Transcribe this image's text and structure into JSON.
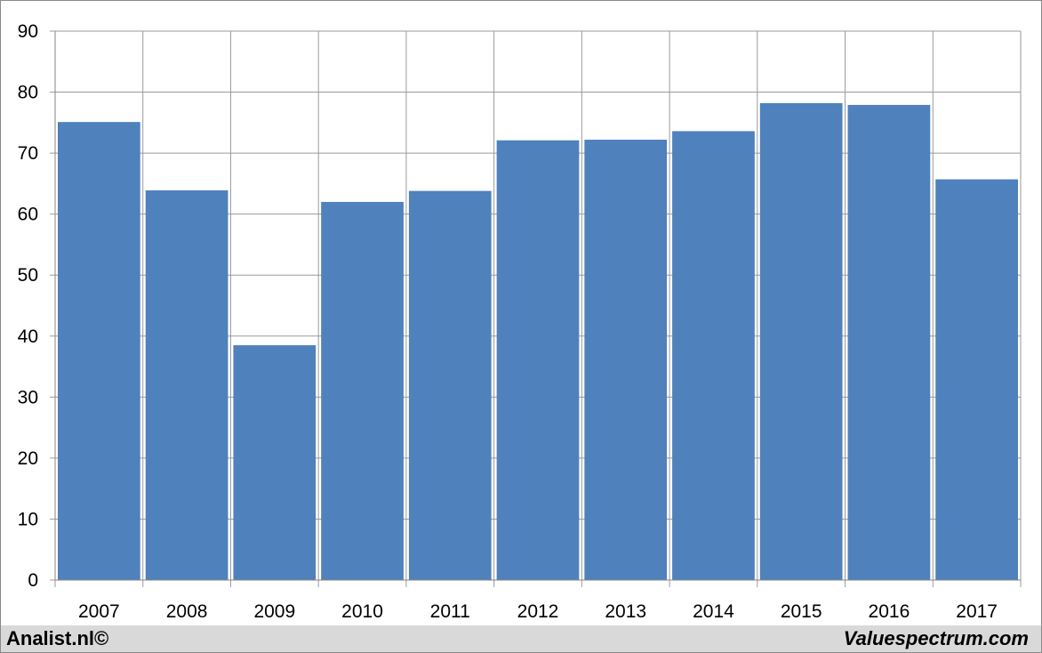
{
  "chart_data": {
    "type": "bar",
    "categories": [
      "2007",
      "2008",
      "2009",
      "2010",
      "2011",
      "2012",
      "2013",
      "2014",
      "2015",
      "2016",
      "2017"
    ],
    "values": [
      75.1,
      63.9,
      38.5,
      62.0,
      63.8,
      72.1,
      72.2,
      73.6,
      78.2,
      77.9,
      65.7
    ],
    "title": "",
    "xlabel": "",
    "ylabel": "",
    "ylim": [
      0,
      90
    ],
    "yticks": [
      "0",
      "10",
      "20",
      "30",
      "40",
      "50",
      "60",
      "70",
      "80",
      "90"
    ],
    "grid": "on",
    "legend": "none",
    "bar_color": "#4f81bd",
    "grid_color": "#9a9a9a"
  },
  "footer": {
    "left_text": "Analist.nl©",
    "right_text": "Valuespectrum.com",
    "background": "#d9d9d9"
  }
}
